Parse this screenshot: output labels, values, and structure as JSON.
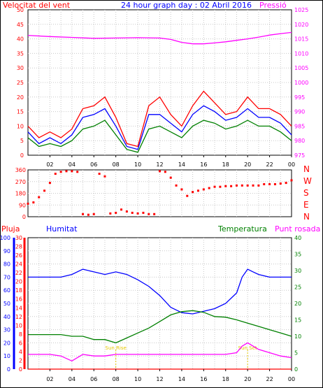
{
  "chart_data": {
    "type": "line",
    "title": "24 hour graph day : 02 Abril 2016",
    "x_tick_labels": [
      "02",
      "04",
      "06",
      "08",
      "10",
      "12",
      "14",
      "16",
      "18",
      "20",
      "22",
      "00"
    ],
    "panels": [
      {
        "id": "wind",
        "left_label": "Velocitat del vent",
        "right_label": "Pressió",
        "left_ticks": [
          0,
          5,
          10,
          15,
          20,
          25,
          30,
          35,
          40,
          45,
          50
        ],
        "right_ticks": [
          975,
          980,
          985,
          990,
          995,
          1000,
          1005,
          1010,
          1015,
          1020,
          1025
        ],
        "series": [
          {
            "color": "#ff0000",
            "x": [
              0,
              1,
              2,
              3,
              4,
              5,
              6,
              7,
              8,
              9,
              10,
              11,
              12,
              13,
              14,
              15,
              16,
              17,
              18,
              19,
              20,
              21,
              22,
              23,
              24
            ],
            "values": [
              10,
              6,
              8,
              6,
              9,
              16,
              17,
              20,
              13,
              4,
              3,
              17,
              20,
              14,
              10,
              17,
              22,
              18,
              14,
              15,
              20,
              16,
              16,
              14,
              10
            ]
          },
          {
            "color": "#0000ff",
            "x": [
              0,
              1,
              2,
              3,
              4,
              5,
              6,
              7,
              8,
              9,
              10,
              11,
              12,
              13,
              14,
              15,
              16,
              17,
              18,
              19,
              20,
              21,
              22,
              23,
              24
            ],
            "values": [
              8,
              4,
              6,
              4,
              7,
              13,
              14,
              16,
              10,
              3,
              2,
              14,
              14,
              11,
              8,
              14,
              17,
              15,
              12,
              13,
              16,
              13,
              13,
              11,
              7
            ]
          },
          {
            "color": "#008000",
            "x": [
              0,
              1,
              2,
              3,
              4,
              5,
              6,
              7,
              8,
              9,
              10,
              11,
              12,
              13,
              14,
              15,
              16,
              17,
              18,
              19,
              20,
              21,
              22,
              23,
              24
            ],
            "values": [
              6,
              3,
              4,
              3,
              5,
              9,
              10,
              12,
              7,
              2,
              1,
              9,
              10,
              8,
              6,
              10,
              12,
              11,
              9,
              10,
              12,
              10,
              10,
              8,
              5
            ]
          },
          {
            "color": "#ff00ff",
            "axis": "right",
            "x": [
              0,
              2,
              4,
              6,
              8,
              10,
              12,
              13,
              14,
              15,
              16,
              17,
              18,
              19,
              20,
              21,
              22,
              23,
              24
            ],
            "values": [
              1016.2,
              1015.8,
              1015.5,
              1015.2,
              1015.3,
              1015.4,
              1015.3,
              1014.8,
              1013.8,
              1013.3,
              1013.3,
              1013.6,
              1014.0,
              1014.5,
              1015.0,
              1015.6,
              1016.3,
              1016.8,
              1017.2
            ]
          }
        ]
      },
      {
        "id": "direction",
        "left_ticks": [
          0,
          90,
          180,
          270,
          360
        ],
        "right_labels": [
          "N",
          "W",
          "S",
          "E",
          "N"
        ],
        "series": [
          {
            "color": "#ff0000",
            "type": "scatter",
            "x": [
              0,
              0.5,
              1,
              1.5,
              2,
              2.5,
              3,
              3.5,
              4,
              4.5,
              5,
              5.5,
              6,
              6.5,
              7,
              7.5,
              8,
              8.5,
              9,
              9.5,
              10,
              10.5,
              11,
              11.5,
              12,
              12.5,
              13,
              13.5,
              14,
              14.5,
              15,
              15.5,
              16,
              16.5,
              17,
              17.5,
              18,
              18.5,
              19,
              19.5,
              20,
              20.5,
              21,
              21.5,
              22,
              22.5,
              23,
              23.5,
              24
            ],
            "values": [
              100,
              110,
              150,
              200,
              260,
              330,
              345,
              350,
              350,
              345,
              20,
              15,
              20,
              330,
              310,
              25,
              30,
              55,
              40,
              30,
              25,
              30,
              20,
              20,
              350,
              345,
              300,
              240,
              210,
              160,
              190,
              200,
              210,
              220,
              230,
              230,
              235,
              235,
              240,
              240,
              240,
              240,
              240,
              250,
              250,
              250,
              255,
              260,
              280
            ]
          }
        ]
      },
      {
        "id": "humidity",
        "left_label_1": "Pluja",
        "left_label_2": "Humitat",
        "right_label_1": "Temperatura",
        "right_label_2": "Punt rosada",
        "humidity_ticks": [
          0,
          10,
          20,
          30,
          40,
          50,
          60,
          70,
          80,
          90,
          100
        ],
        "rain_ticks": [
          0,
          2,
          4,
          6,
          8,
          10,
          12,
          14,
          16,
          18,
          20,
          22,
          24,
          26,
          28,
          30
        ],
        "temp_ticks": [
          0,
          5,
          10,
          15,
          20,
          25,
          30,
          35,
          40
        ],
        "annotations": [
          {
            "text": "Sun Rise",
            "x": 8
          },
          {
            "text": "Sun Set",
            "x": 20
          }
        ],
        "series": [
          {
            "color": "#0000ff",
            "axis": "humidity",
            "x": [
              0,
              1,
              2,
              3,
              4,
              5,
              6,
              7,
              8,
              9,
              10,
              11,
              12,
              13,
              14,
              15,
              16,
              17,
              18,
              19,
              19.5,
              20,
              20.5,
              21,
              22,
              23,
              24
            ],
            "values": [
              70,
              70,
              70,
              70,
              72,
              76,
              74,
              72,
              74,
              72,
              68,
              63,
              56,
              47,
              43,
              42,
              44,
              46,
              50,
              58,
              70,
              76,
              74,
              72,
              70,
              70,
              70
            ]
          },
          {
            "color": "#008000",
            "axis": "temp",
            "x": [
              0,
              1,
              2,
              3,
              4,
              5,
              6,
              7,
              8,
              9,
              10,
              11,
              12,
              13,
              14,
              15,
              16,
              17,
              18,
              19,
              20,
              21,
              22,
              23,
              24
            ],
            "values": [
              10.5,
              10.5,
              10.5,
              10.5,
              10.0,
              10.0,
              9.0,
              9.0,
              8.0,
              9.5,
              11.0,
              12.5,
              14.5,
              16.5,
              17.5,
              17.8,
              17.3,
              16.0,
              15.8,
              15.0,
              14.0,
              13.0,
              12.0,
              11.0,
              10.0
            ]
          },
          {
            "color": "#ff00ff",
            "axis": "temp",
            "x": [
              0,
              1,
              2,
              3,
              4,
              5,
              6,
              7,
              8,
              9,
              10,
              11,
              12,
              13,
              14,
              15,
              16,
              17,
              18,
              19,
              19.5,
              20,
              20.5,
              21,
              22,
              23,
              24
            ],
            "values": [
              4.5,
              4.5,
              4.5,
              4.0,
              2.5,
              4.5,
              4.0,
              4.0,
              4.5,
              4.5,
              4.5,
              4.5,
              4.5,
              4.5,
              4.5,
              4.5,
              4.5,
              4.5,
              4.5,
              5.0,
              7.0,
              8.0,
              7.0,
              6.0,
              5.0,
              4.0,
              3.5
            ]
          },
          {
            "color": "#ff0000",
            "axis": "rain",
            "x": [
              0,
              24
            ],
            "values": [
              0,
              0
            ]
          }
        ]
      }
    ]
  }
}
